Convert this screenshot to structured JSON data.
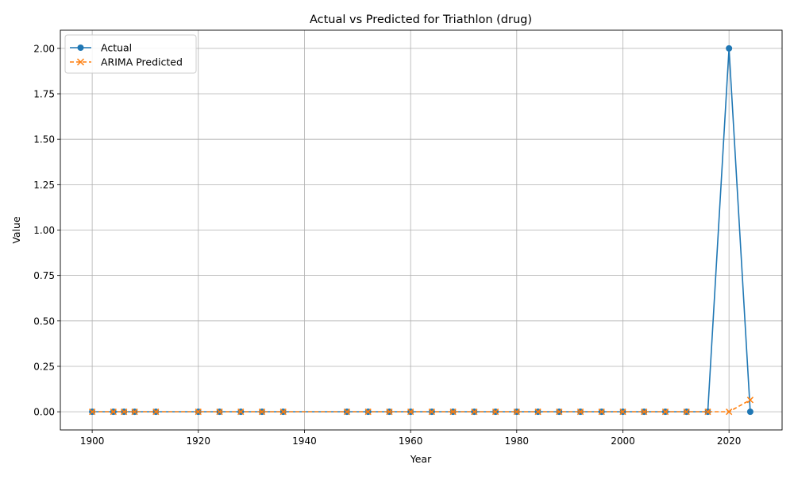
{
  "chart_data": {
    "type": "line",
    "title": "Actual vs Predicted for Triathlon (drug)",
    "xlabel": "Year",
    "ylabel": "Value",
    "xlim": [
      1894,
      2030
    ],
    "ylim": [
      -0.1,
      2.1
    ],
    "xticks": [
      1900,
      1920,
      1940,
      1960,
      1980,
      2000,
      2020
    ],
    "yticks": [
      0.0,
      0.25,
      0.5,
      0.75,
      1.0,
      1.25,
      1.5,
      1.75,
      2.0
    ],
    "ytick_labels": [
      "0.00",
      "0.25",
      "0.50",
      "0.75",
      "1.00",
      "1.25",
      "1.50",
      "1.75",
      "2.00"
    ],
    "grid": true,
    "legend_position": "upper-left",
    "x": [
      1900,
      1904,
      1906,
      1908,
      1912,
      1920,
      1924,
      1928,
      1932,
      1936,
      1948,
      1952,
      1956,
      1960,
      1964,
      1968,
      1972,
      1976,
      1980,
      1984,
      1988,
      1992,
      1996,
      2000,
      2004,
      2008,
      2012,
      2016,
      2020,
      2024
    ],
    "series": [
      {
        "name": "Actual",
        "color": "#1f77b4",
        "marker": "circle",
        "linestyle": "solid",
        "values": [
          0,
          0,
          0,
          0,
          0,
          0,
          0,
          0,
          0,
          0,
          0,
          0,
          0,
          0,
          0,
          0,
          0,
          0,
          0,
          0,
          0,
          0,
          0,
          0,
          0,
          0,
          0,
          0,
          2,
          0
        ]
      },
      {
        "name": "ARIMA Predicted",
        "color": "#ff7f0e",
        "marker": "x",
        "linestyle": "dashed",
        "values": [
          0,
          0,
          0,
          0,
          0,
          0,
          0,
          0,
          0,
          0,
          0,
          0,
          0,
          0,
          0,
          0,
          0,
          0,
          0,
          0,
          0,
          0,
          0,
          0,
          0,
          0,
          0,
          0,
          0,
          0.065
        ]
      }
    ]
  }
}
